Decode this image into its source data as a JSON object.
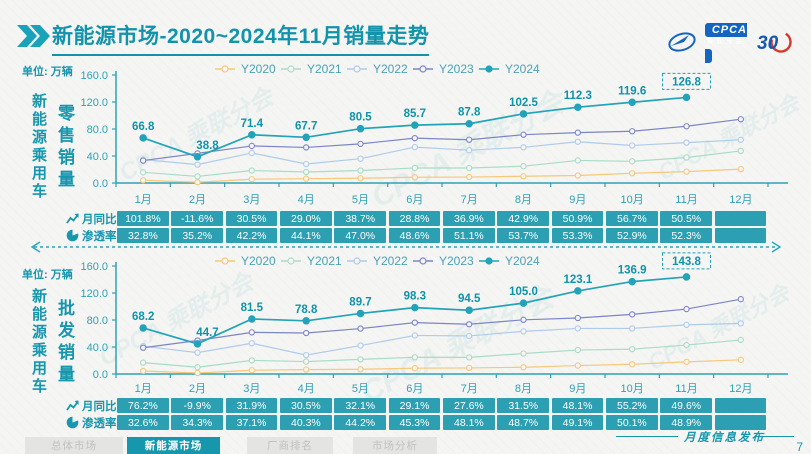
{
  "header": {
    "title_main": "新能源市场",
    "title_rest": "-2020~2024年11月销量走势",
    "cpca_logo_text": "CPCA",
    "cpca_logo_subtext": "乘联分会",
    "anniversary_text": "30"
  },
  "months": [
    "1月",
    "2月",
    "3月",
    "4月",
    "5月",
    "6月",
    "7月",
    "8月",
    "9月",
    "10月",
    "11月",
    "12月"
  ],
  "series_colors": {
    "Y2020": "#f6c878",
    "Y2021": "#a9dcc6",
    "Y2022": "#afcbec",
    "Y2023": "#7c85c6",
    "Y2024": "#22a3b9"
  },
  "sections": [
    {
      "id": "retail",
      "unit_label": "单位: 万辆",
      "group_label": "新能源乘用车",
      "measure_label": "零售销量",
      "chart_data": {
        "type": "line",
        "title": "新能源乘用车零售销量",
        "ylabel": "零售销量(万辆)",
        "categories": [
          "1月",
          "2月",
          "3月",
          "4月",
          "5月",
          "6月",
          "7月",
          "8月",
          "9月",
          "10月",
          "11月",
          "12月"
        ],
        "ylim": [
          0,
          160
        ],
        "yticks": [
          0,
          40,
          80,
          120,
          160
        ],
        "grid": false,
        "legend_position": "top",
        "series": [
          {
            "name": "Y2020",
            "values": [
              4.1,
              1.1,
              5.6,
              6.4,
              7.0,
              8.5,
              8.8,
              10.0,
              11.1,
              14.4,
              16.9,
              20.6
            ]
          },
          {
            "name": "Y2021",
            "values": [
              15.8,
              9.7,
              18.5,
              16.3,
              18.5,
              22.3,
              22.2,
              24.9,
              33.4,
              32.1,
              37.8,
              47.5
            ]
          },
          {
            "name": "Y2022",
            "values": [
              34.7,
              27.2,
              44.5,
              28.2,
              36.0,
              53.2,
              48.6,
              52.9,
              61.1,
              55.6,
              59.8,
              64.0
            ]
          },
          {
            "name": "Y2023",
            "values": [
              33.2,
              43.9,
              54.9,
              52.7,
              58.0,
              66.5,
              64.1,
              71.6,
              74.6,
              76.7,
              84.1,
              94.5
            ]
          },
          {
            "name": "Y2024",
            "values": [
              66.8,
              38.8,
              71.4,
              67.7,
              80.5,
              85.7,
              87.8,
              102.5,
              112.3,
              119.6,
              126.8,
              null
            ],
            "labeled": true,
            "highlight_last": true
          }
        ]
      },
      "table_rows": [
        {
          "icon": "line-chart-icon",
          "label": "月同比",
          "values": [
            "101.8%",
            "-11.6%",
            "30.5%",
            "29.0%",
            "38.7%",
            "28.8%",
            "36.9%",
            "42.9%",
            "50.9%",
            "56.7%",
            "50.5%",
            ""
          ]
        },
        {
          "icon": "pie-chart-icon",
          "label": "渗透率",
          "values": [
            "32.8%",
            "35.2%",
            "42.2%",
            "44.1%",
            "47.0%",
            "48.6%",
            "51.1%",
            "53.7%",
            "53.3%",
            "52.9%",
            "52.3%",
            ""
          ]
        }
      ]
    },
    {
      "id": "wholesale",
      "unit_label": "单位: 万辆",
      "group_label": "新能源乘用车",
      "measure_label": "批发销量",
      "chart_data": {
        "type": "line",
        "title": "新能源乘用车批发销量",
        "ylabel": "批发销量(万辆)",
        "categories": [
          "1月",
          "2月",
          "3月",
          "4月",
          "5月",
          "6月",
          "7月",
          "8月",
          "9月",
          "10月",
          "11月",
          "12月"
        ],
        "ylim": [
          0,
          160
        ],
        "yticks": [
          0,
          40,
          80,
          120,
          160
        ],
        "grid": false,
        "legend_position": "top",
        "series": [
          {
            "name": "Y2020",
            "values": [
              4.4,
              1.5,
              5.6,
              6.5,
              7.0,
              8.6,
              9.0,
              10.0,
              12.5,
              14.4,
              18.0,
              21.0
            ]
          },
          {
            "name": "Y2021",
            "values": [
              16.8,
              10.0,
              20.2,
              18.4,
              21.7,
              24.8,
              24.6,
              30.4,
              35.5,
              36.8,
              42.9,
              50.5
            ]
          },
          {
            "name": "Y2022",
            "values": [
              41.2,
              31.7,
              45.5,
              28.0,
              42.1,
              57.1,
              56.4,
              63.2,
              67.5,
              67.6,
              72.8,
              75.0
            ]
          },
          {
            "name": "Y2023",
            "values": [
              38.9,
              49.6,
              61.7,
              60.7,
              67.3,
              76.1,
              73.7,
              80.3,
              83.0,
              88.3,
              96.2,
              110.8
            ]
          },
          {
            "name": "Y2024",
            "values": [
              68.2,
              44.7,
              81.5,
              78.8,
              89.7,
              98.3,
              94.5,
              105.0,
              123.1,
              136.9,
              143.8,
              null
            ],
            "labeled": true,
            "highlight_last": true
          }
        ]
      },
      "table_rows": [
        {
          "icon": "line-chart-icon",
          "label": "月同比",
          "values": [
            "76.2%",
            "-9.9%",
            "31.9%",
            "30.5%",
            "32.1%",
            "29.1%",
            "27.6%",
            "31.5%",
            "48.1%",
            "55.2%",
            "49.6%",
            ""
          ]
        },
        {
          "icon": "pie-chart-icon",
          "label": "渗透率",
          "values": [
            "32.6%",
            "34.3%",
            "37.1%",
            "40.3%",
            "44.2%",
            "45.3%",
            "48.1%",
            "48.7%",
            "49.1%",
            "50.1%",
            "48.9%",
            ""
          ]
        }
      ]
    }
  ],
  "footer": {
    "tabs": [
      {
        "label": "总体市场",
        "active": false
      },
      {
        "label": "新能源市场",
        "active": true
      },
      {
        "label": "厂商排名",
        "active": false
      },
      {
        "label": "市场分析",
        "active": false
      }
    ],
    "publication_label": "月度信息发布",
    "page_number": "7"
  },
  "watermark_text": "CPCA 乘联分会"
}
